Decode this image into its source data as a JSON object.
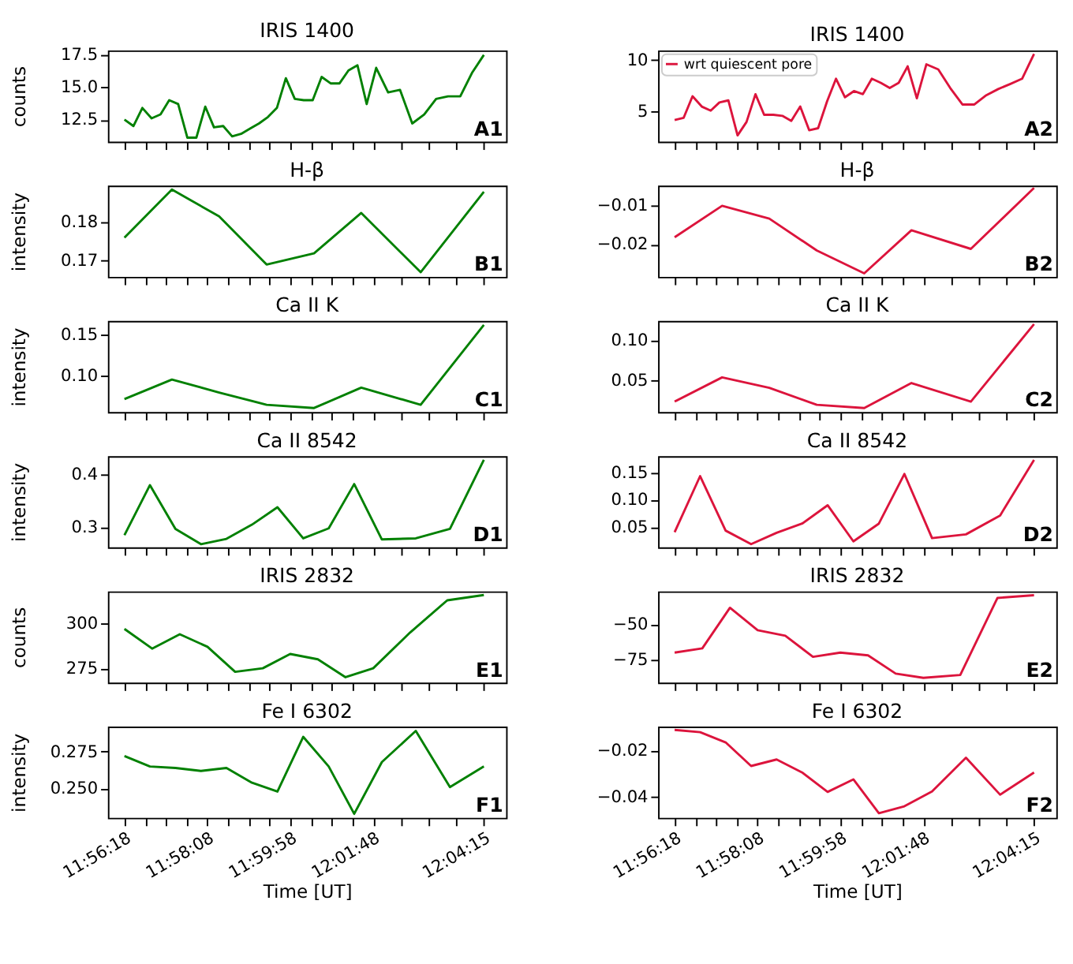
{
  "chart_data": [
    {
      "type": "line",
      "title": "IRIS 1400",
      "ylabel": "counts",
      "tick_labels": "y",
      "annotations": [
        "A1"
      ],
      "xlim": [
        11.9322,
        12.079
      ],
      "xticks": [
        11.938333,
        11.946,
        11.9536,
        11.9613,
        11.968889,
        11.9765,
        11.9842,
        11.9918,
        11.999444,
        12.0071,
        12.0147,
        12.0224,
        12.03,
        12.0402,
        12.0504,
        12.0606,
        12.070833
      ],
      "ylim": [
        10.8,
        17.85
      ],
      "yticks": [
        12.5,
        {
          "value": 15,
          "label": "15.0"
        },
        17.5
      ],
      "series": [
        {
          "color": "#008000",
          "x": [
            11.9383,
            11.9416,
            11.9449,
            11.9483,
            11.9516,
            11.9548,
            11.9581,
            11.9615,
            11.9648,
            11.9681,
            11.9713,
            11.9747,
            11.978,
            11.9813,
            11.9846,
            11.9879,
            11.9912,
            11.9945,
            11.9978,
            12.0011,
            12.0044,
            12.0077,
            12.011,
            12.0143,
            12.0176,
            12.0209,
            12.0242,
            12.0276,
            12.0311,
            12.0355,
            12.0399,
            12.0444,
            12.0488,
            12.0532,
            12.0576,
            12.0621,
            12.0664,
            12.0708
          ],
          "values": [
            12.5,
            12.0,
            13.4,
            12.6,
            12.9,
            14.0,
            13.7,
            11.1,
            11.1,
            13.5,
            11.9,
            12.0,
            11.2,
            11.4,
            11.8,
            12.2,
            12.7,
            13.4,
            15.7,
            14.1,
            14.0,
            14.0,
            15.8,
            15.3,
            15.3,
            16.3,
            16.7,
            13.7,
            16.5,
            14.6,
            14.8,
            12.2,
            12.9,
            14.1,
            14.3,
            14.3,
            16.1,
            17.5
          ]
        }
      ]
    },
    {
      "type": "line",
      "title": "IRIS 1400",
      "tick_labels": "y",
      "legend": "top left",
      "annotations": [
        "A2"
      ],
      "xlim": [
        11.9322,
        12.079
      ],
      "xticks": [
        11.938333,
        11.946,
        11.9536,
        11.9613,
        11.968889,
        11.9765,
        11.9842,
        11.9918,
        11.999444,
        12.0071,
        12.0147,
        12.0224,
        12.03,
        12.0402,
        12.0504,
        12.0606,
        12.070833
      ],
      "ylim": [
        2.1,
        10.95
      ],
      "yticks": [
        5,
        10
      ],
      "series": [
        {
          "name": "wrt quiescent pore",
          "color": "#dc143c",
          "x": [
            11.9383,
            11.9416,
            11.9449,
            11.9483,
            11.9516,
            11.9548,
            11.9581,
            11.9615,
            11.9648,
            11.9681,
            11.9713,
            11.9747,
            11.978,
            11.9813,
            11.9846,
            11.9879,
            11.9912,
            11.9945,
            11.9978,
            12.0011,
            12.0044,
            12.0077,
            12.011,
            12.0143,
            12.0176,
            12.0209,
            12.0242,
            12.0276,
            12.0311,
            12.0355,
            12.0399,
            12.0444,
            12.0488,
            12.0532,
            12.0576,
            12.0621,
            12.0664,
            12.0708
          ],
          "values": [
            4.2,
            4.4,
            6.5,
            5.5,
            5.1,
            5.9,
            6.1,
            2.7,
            4.0,
            6.7,
            4.7,
            4.7,
            4.6,
            4.1,
            5.5,
            3.2,
            3.4,
            6.0,
            8.2,
            6.4,
            7.0,
            6.7,
            8.2,
            7.8,
            7.3,
            7.8,
            9.4,
            6.3,
            9.6,
            9.1,
            7.3,
            5.7,
            5.7,
            6.6,
            7.2,
            7.7,
            8.2,
            10.6
          ]
        }
      ]
    },
    {
      "type": "line",
      "title": "H-β",
      "ylabel": "intensity",
      "tick_labels": "y",
      "annotations": [
        "B1"
      ],
      "xlim": [
        11.9322,
        12.079
      ],
      "xticks": [
        11.938333,
        11.946,
        11.9536,
        11.9613,
        11.968889,
        11.9765,
        11.9842,
        11.9918,
        11.999444,
        12.0071,
        12.0147,
        12.0224,
        12.03,
        12.0402,
        12.0504,
        12.0606,
        12.070833
      ],
      "ylim": [
        0.1658,
        0.1895
      ],
      "yticks": [
        0.17,
        0.18
      ],
      "series": [
        {
          "color": "#008000",
          "x": [
            11.9383,
            11.9558,
            11.9732,
            11.9907,
            12.0082,
            12.0256,
            12.0475,
            12.0708
          ],
          "values": [
            0.176,
            0.1885,
            0.1815,
            0.169,
            0.1719,
            0.1824,
            0.167,
            0.1879
          ]
        }
      ]
    },
    {
      "type": "line",
      "title": "H-β",
      "tick_labels": "y",
      "annotations": [
        "B2"
      ],
      "xlim": [
        11.9322,
        12.079
      ],
      "xticks": [
        11.938333,
        11.946,
        11.9536,
        11.9613,
        11.968889,
        11.9765,
        11.9842,
        11.9918,
        11.999444,
        12.0071,
        12.0147,
        12.0224,
        12.03,
        12.0402,
        12.0504,
        12.0606,
        12.070833
      ],
      "ylim": [
        -0.0284,
        -0.0049
      ],
      "yticks": [
        {
          "value": -0.02,
          "label": "−0.02"
        },
        {
          "value": -0.01,
          "label": "−0.01"
        }
      ],
      "series": [
        {
          "color": "#dc143c",
          "x": [
            11.9383,
            11.9558,
            11.9732,
            11.9907,
            12.0082,
            12.0256,
            12.0475,
            12.0708
          ],
          "values": [
            -0.0182,
            -0.0101,
            -0.0134,
            -0.0216,
            -0.0275,
            -0.0164,
            -0.0212,
            -0.0055
          ]
        }
      ]
    },
    {
      "type": "line",
      "title": "Ca II K",
      "ylabel": "intensity",
      "tick_labels": "y",
      "annotations": [
        "C1"
      ],
      "xlim": [
        11.9322,
        12.079
      ],
      "xticks": [
        11.938333,
        11.946,
        11.9536,
        11.9613,
        11.968889,
        11.9765,
        11.9842,
        11.9918,
        11.999444,
        12.0071,
        12.0147,
        12.0224,
        12.03,
        12.0402,
        12.0504,
        12.0606,
        12.070833
      ],
      "ylim": [
        0.055,
        0.167
      ],
      "yticks": [
        {
          "value": 0.1,
          "label": "0.10"
        },
        0.15
      ],
      "series": [
        {
          "color": "#008000",
          "x": [
            11.9383,
            11.9558,
            11.9732,
            11.9907,
            12.0082,
            12.0256,
            12.0475,
            12.0708
          ],
          "values": [
            0.071,
            0.095,
            0.079,
            0.064,
            0.06,
            0.085,
            0.064,
            0.162
          ]
        }
      ]
    },
    {
      "type": "line",
      "title": "Ca II K",
      "tick_labels": "y",
      "annotations": [
        "C2"
      ],
      "xlim": [
        11.9322,
        12.079
      ],
      "xticks": [
        11.938333,
        11.946,
        11.9536,
        11.9613,
        11.968889,
        11.9765,
        11.9842,
        11.9918,
        11.999444,
        12.0071,
        12.0147,
        12.0224,
        12.03,
        12.0402,
        12.0504,
        12.0606,
        12.070833
      ],
      "ylim": [
        0.011,
        0.124
      ],
      "yticks": [
        0.05,
        {
          "value": 0.1,
          "label": "0.10"
        }
      ],
      "series": [
        {
          "color": "#dc143c",
          "x": [
            11.9383,
            11.9558,
            11.9732,
            11.9907,
            12.0082,
            12.0256,
            12.0475,
            12.0708
          ],
          "values": [
            0.024,
            0.054,
            0.041,
            0.02,
            0.016,
            0.047,
            0.024,
            0.12
          ]
        }
      ]
    },
    {
      "type": "line",
      "title": "Ca II 8542",
      "ylabel": "intensity",
      "tick_labels": "y",
      "annotations": [
        "D1"
      ],
      "xlim": [
        11.9322,
        12.079
      ],
      "xticks": [
        11.938333,
        11.946,
        11.9536,
        11.9613,
        11.968889,
        11.9765,
        11.9842,
        11.9918,
        11.999444,
        12.0071,
        12.0147,
        12.0224,
        12.03,
        12.0402,
        12.0504,
        12.0606,
        12.070833
      ],
      "ylim": [
        0.262,
        0.435
      ],
      "yticks": [
        0.3,
        0.4
      ],
      "series": [
        {
          "color": "#008000",
          "x": [
            11.9383,
            11.9477,
            11.9571,
            11.9665,
            11.9759,
            11.9853,
            11.9947,
            12.0042,
            12.0136,
            12.023,
            12.0332,
            12.0457,
            12.0583,
            12.0708
          ],
          "values": [
            0.285,
            0.38,
            0.297,
            0.268,
            0.278,
            0.305,
            0.338,
            0.279,
            0.298,
            0.382,
            0.277,
            0.279,
            0.297,
            0.428
          ]
        }
      ]
    },
    {
      "type": "line",
      "title": "Ca II 8542",
      "tick_labels": "y",
      "annotations": [
        "D2"
      ],
      "xlim": [
        11.9322,
        12.079
      ],
      "xticks": [
        11.938333,
        11.946,
        11.9536,
        11.9613,
        11.968889,
        11.9765,
        11.9842,
        11.9918,
        11.999444,
        12.0071,
        12.0147,
        12.0224,
        12.03,
        12.0402,
        12.0504,
        12.0606,
        12.070833
      ],
      "ylim": [
        0.012,
        0.181
      ],
      "yticks": [
        0.05,
        {
          "value": 0.1,
          "label": "0.10"
        },
        0.15
      ],
      "series": [
        {
          "color": "#dc143c",
          "x": [
            11.9383,
            11.9477,
            11.9571,
            11.9665,
            11.9759,
            11.9853,
            11.9947,
            12.0042,
            12.0136,
            12.023,
            12.0332,
            12.0457,
            12.0583,
            12.0708
          ],
          "values": [
            0.04,
            0.144,
            0.043,
            0.018,
            0.039,
            0.056,
            0.09,
            0.023,
            0.056,
            0.148,
            0.029,
            0.036,
            0.071,
            0.174
          ]
        }
      ]
    },
    {
      "type": "line",
      "title": "IRIS 2832",
      "ylabel": "counts",
      "tick_labels": "y",
      "annotations": [
        "E1"
      ],
      "xlim": [
        11.9322,
        12.079
      ],
      "xticks": [
        11.938333,
        11.946,
        11.9536,
        11.9613,
        11.968889,
        11.9765,
        11.9842,
        11.9918,
        11.999444,
        12.0071,
        12.0147,
        12.0224,
        12.03,
        12.0402,
        12.0504,
        12.0606,
        12.070833
      ],
      "ylim": [
        267,
        318
      ],
      "yticks": [
        275,
        300
      ],
      "series": [
        {
          "color": "#008000",
          "x": [
            11.9383,
            11.9485,
            11.9587,
            11.9689,
            11.9791,
            11.9893,
            11.9994,
            12.0096,
            12.0198,
            12.03,
            12.0436,
            12.0573,
            12.0708
          ],
          "values": [
            297,
            286,
            294,
            287,
            273,
            275,
            283,
            280,
            270,
            275,
            295,
            313,
            316
          ]
        }
      ]
    },
    {
      "type": "line",
      "title": "IRIS 2832",
      "tick_labels": "y",
      "annotations": [
        "E2"
      ],
      "xlim": [
        11.9322,
        12.079
      ],
      "xticks": [
        11.938333,
        11.946,
        11.9536,
        11.9613,
        11.968889,
        11.9765,
        11.9842,
        11.9918,
        11.999444,
        12.0071,
        12.0147,
        12.0224,
        12.03,
        12.0402,
        12.0504,
        12.0606,
        12.070833
      ],
      "ylim": [
        -91.4,
        -26.3
      ],
      "yticks": [
        {
          "value": -75,
          "label": "−75"
        },
        {
          "value": -50,
          "label": "−50"
        }
      ],
      "series": [
        {
          "color": "#dc143c",
          "x": [
            11.9383,
            11.9485,
            11.9587,
            11.9689,
            11.9791,
            11.9893,
            11.9994,
            12.0096,
            12.0198,
            12.03,
            12.0436,
            12.0573,
            12.0708
          ],
          "values": [
            -70,
            -67,
            -38,
            -54,
            -58,
            -73,
            -70,
            -72,
            -85,
            -88,
            -86,
            -31,
            -29
          ]
        }
      ]
    },
    {
      "type": "line",
      "title": "Fe I 6302",
      "ylabel": "intensity",
      "xlabel": "Time [UT]",
      "annotations": [
        "F1"
      ],
      "xlim": [
        11.9322,
        12.079
      ],
      "xticks": [
        {
          "value": 11.938333,
          "label": "11:56:18"
        },
        {
          "value": 11.946,
          "label": null
        },
        {
          "value": 11.9536,
          "label": null
        },
        {
          "value": 11.9613,
          "label": null
        },
        {
          "value": 11.968889,
          "label": "11:58:08"
        },
        {
          "value": 11.9765,
          "label": null
        },
        {
          "value": 11.9842,
          "label": null
        },
        {
          "value": 11.9918,
          "label": null
        },
        {
          "value": 11.999444,
          "label": "11:59:58"
        },
        {
          "value": 12.0071,
          "label": null
        },
        {
          "value": 12.0147,
          "label": null
        },
        {
          "value": 12.0224,
          "label": null
        },
        {
          "value": 12.03,
          "label": "12:01:48"
        },
        {
          "value": 12.0402,
          "label": null
        },
        {
          "value": 12.0504,
          "label": null
        },
        {
          "value": 12.0606,
          "label": null
        },
        {
          "value": 12.070833,
          "label": "12:04:15"
        }
      ],
      "ylim": [
        0.2303,
        0.2919
      ],
      "yticks": [
        {
          "value": 0.25,
          "label": "0.250"
        },
        0.275
      ],
      "series": [
        {
          "color": "#008000",
          "x": [
            11.9383,
            11.9477,
            11.9571,
            11.9665,
            11.9759,
            11.9853,
            11.9947,
            12.0042,
            12.0136,
            12.023,
            12.0332,
            12.0457,
            12.0583,
            12.0708
          ],
          "values": [
            0.272,
            0.265,
            0.264,
            0.262,
            0.264,
            0.254,
            0.248,
            0.285,
            0.265,
            0.233,
            0.268,
            0.289,
            0.251,
            0.265
          ]
        }
      ]
    },
    {
      "type": "line",
      "title": "Fe I 6302",
      "xlabel": "Time [UT]",
      "annotations": [
        "F2"
      ],
      "xlim": [
        11.9322,
        12.079
      ],
      "xticks": [
        {
          "value": 11.938333,
          "label": "11:56:18"
        },
        {
          "value": 11.946,
          "label": null
        },
        {
          "value": 11.9536,
          "label": null
        },
        {
          "value": 11.9613,
          "label": null
        },
        {
          "value": 11.968889,
          "label": "11:58:08"
        },
        {
          "value": 11.9765,
          "label": null
        },
        {
          "value": 11.9842,
          "label": null
        },
        {
          "value": 11.9918,
          "label": null
        },
        {
          "value": 11.999444,
          "label": "11:59:58"
        },
        {
          "value": 12.0071,
          "label": null
        },
        {
          "value": 12.0147,
          "label": null
        },
        {
          "value": 12.0224,
          "label": null
        },
        {
          "value": 12.03,
          "label": "12:01:48"
        },
        {
          "value": 12.0402,
          "label": null
        },
        {
          "value": 12.0504,
          "label": null
        },
        {
          "value": 12.0606,
          "label": null
        },
        {
          "value": 12.070833,
          "label": "12:04:15"
        }
      ],
      "ylim": [
        -0.049,
        -0.0096
      ],
      "yticks": [
        {
          "value": -0.04,
          "label": "−0.04"
        },
        {
          "value": -0.02,
          "label": "−0.02"
        }
      ],
      "series": [
        {
          "color": "#dc143c",
          "x": [
            11.9383,
            11.9477,
            11.9571,
            11.9665,
            11.9759,
            11.9853,
            11.9947,
            12.0042,
            12.0136,
            12.023,
            12.0332,
            12.0457,
            12.0583,
            12.0708
          ],
          "values": [
            -0.011,
            -0.012,
            -0.0164,
            -0.0266,
            -0.0238,
            -0.0294,
            -0.0378,
            -0.0324,
            -0.047,
            -0.044,
            -0.0376,
            -0.023,
            -0.039,
            -0.0294
          ]
        }
      ]
    }
  ]
}
